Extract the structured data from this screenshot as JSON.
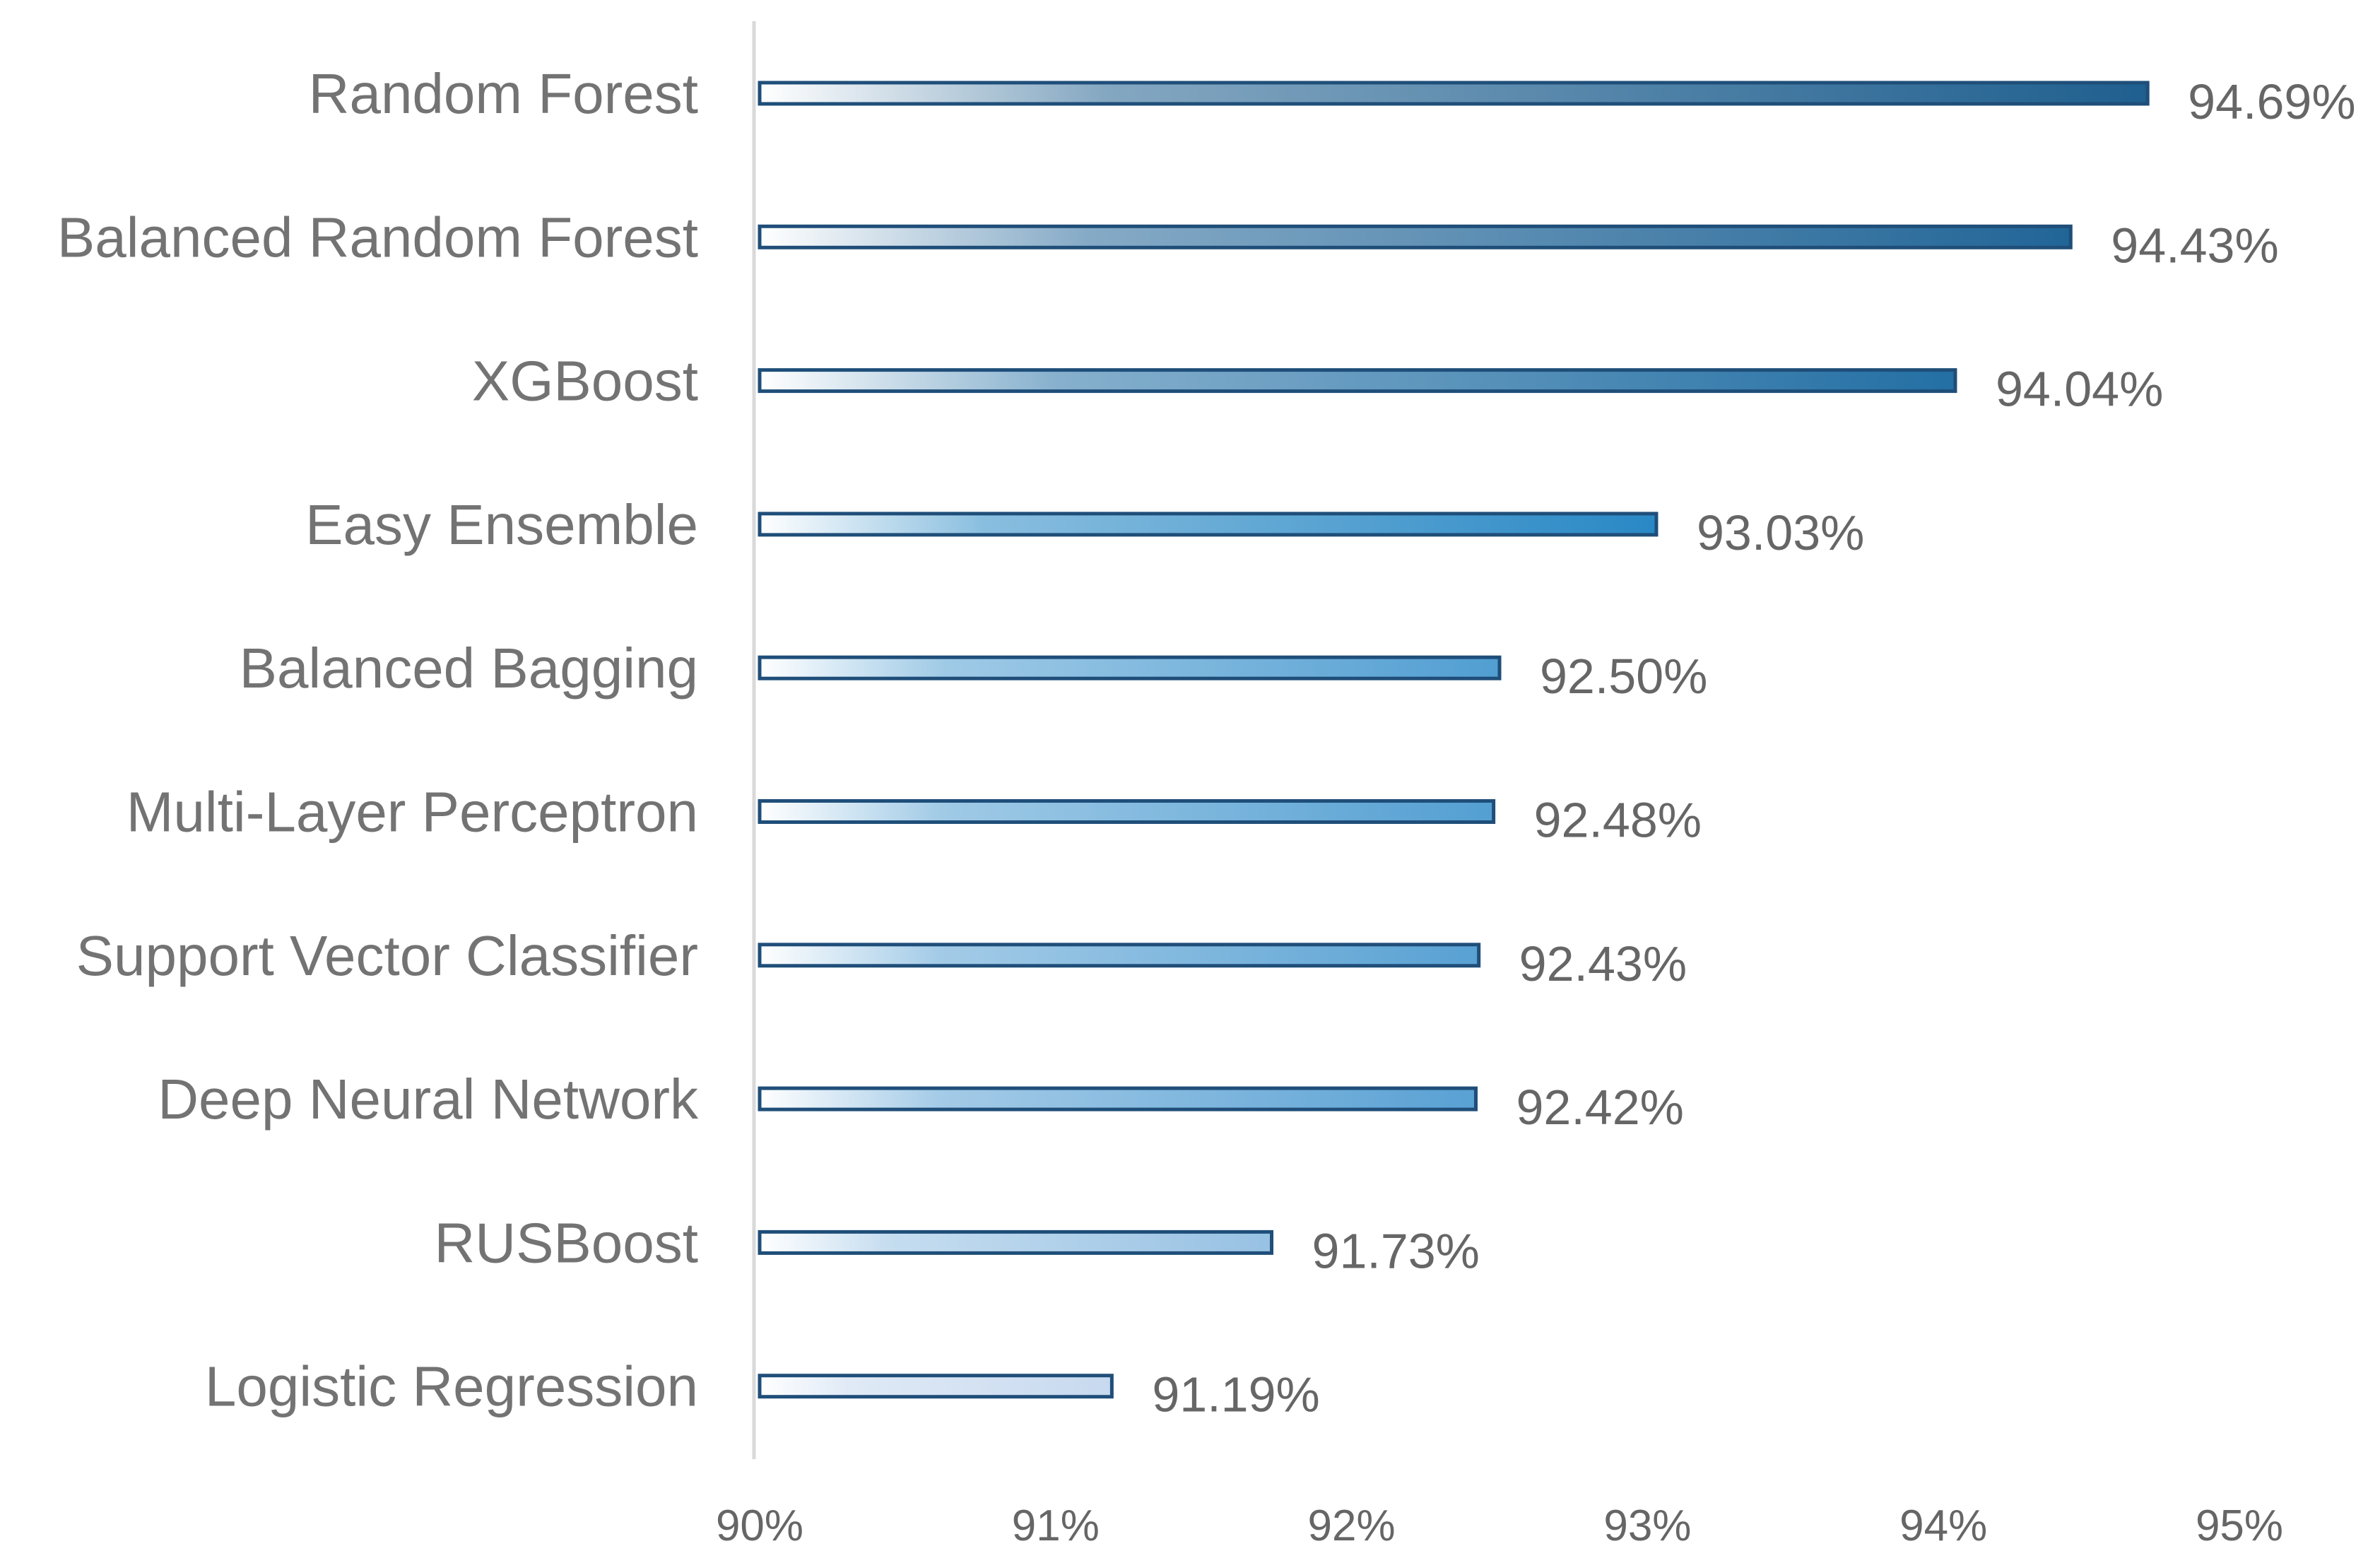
{
  "chart_data": {
    "type": "bar",
    "orientation": "horizontal",
    "title": "",
    "xlabel": "",
    "ylabel": "",
    "categories": [
      "Random Forest",
      "Balanced Random Forest",
      "XGBoost",
      "Easy Ensemble",
      "Balanced Bagging",
      "Multi-Layer Perceptron",
      "Support Vector Classifier",
      "Deep Neural Network",
      "RUSBoost",
      "Logistic Regression"
    ],
    "values": [
      94.69,
      94.43,
      94.04,
      93.03,
      92.5,
      92.48,
      92.43,
      92.42,
      91.73,
      91.19
    ],
    "value_labels": [
      "94.69%",
      "94.43%",
      "94.04%",
      "93.03%",
      "92.50%",
      "92.48%",
      "92.43%",
      "92.42%",
      "91.73%",
      "91.19%"
    ],
    "xlim": [
      90,
      95
    ],
    "x_ticks": [
      90,
      91,
      92,
      93,
      94,
      95
    ],
    "x_tick_labels": [
      "90%",
      "91%",
      "92%",
      "93%",
      "94%",
      "95%"
    ],
    "grid": false,
    "legend": "none",
    "colors": {
      "bar_start": "#ffffff",
      "bar_end_high": "#1f5f8f",
      "bar_end_mid": "#2a8ac8",
      "bar_end_low": "#c7d9ef",
      "bar_outline": "#1f4e79",
      "axis_line": "#d9d9d9",
      "text": "#737373"
    }
  }
}
